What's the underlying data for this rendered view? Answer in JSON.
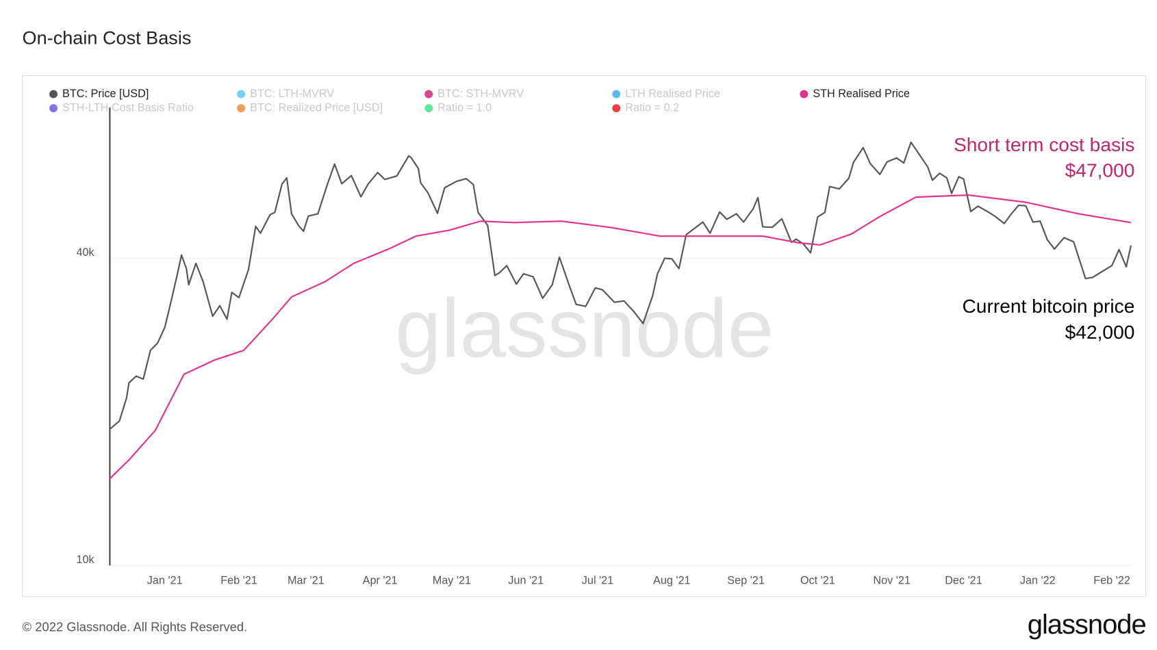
{
  "chart_data": {
    "type": "line",
    "title": "On-chain Cost Basis",
    "log_scale": true,
    "grid": true,
    "ylim": [
      10000,
      79000
    ],
    "yticks": [
      {
        "value": 10000,
        "label": "10k"
      },
      {
        "value": 40000,
        "label": "40k"
      }
    ],
    "xlim": [
      "2020-12-09",
      "2022-02-09"
    ],
    "xticks": [
      {
        "value": "2021-01-01",
        "label": "Jan '21"
      },
      {
        "value": "2021-02-01",
        "label": "Feb '21"
      },
      {
        "value": "2021-03-01",
        "label": "Mar '21"
      },
      {
        "value": "2021-04-01",
        "label": "Apr '21"
      },
      {
        "value": "2021-05-01",
        "label": "May '21"
      },
      {
        "value": "2021-06-01",
        "label": "Jun '21"
      },
      {
        "value": "2021-07-01",
        "label": "Jul '21"
      },
      {
        "value": "2021-08-01",
        "label": "Aug '21"
      },
      {
        "value": "2021-09-01",
        "label": "Sep '21"
      },
      {
        "value": "2021-10-01",
        "label": "Oct '21"
      },
      {
        "value": "2021-11-01",
        "label": "Nov '21"
      },
      {
        "value": "2021-12-01",
        "label": "Dec '21"
      },
      {
        "value": "2022-01-01",
        "label": "Jan '22"
      },
      {
        "value": "2022-02-01",
        "label": "Feb '22"
      }
    ],
    "series": [
      {
        "name": "BTC: Price [USD]",
        "color": "#555555",
        "visible": true,
        "x": [
          "2020-12-09",
          "2020-12-13",
          "2020-12-16",
          "2020-12-17",
          "2020-12-20",
          "2020-12-23",
          "2020-12-26",
          "2020-12-29",
          "2021-01-01",
          "2021-01-03",
          "2021-01-06",
          "2021-01-08",
          "2021-01-10",
          "2021-01-11",
          "2021-01-14",
          "2021-01-17",
          "2021-01-21",
          "2021-01-24",
          "2021-01-27",
          "2021-01-29",
          "2021-02-01",
          "2021-02-05",
          "2021-02-08",
          "2021-02-10",
          "2021-02-14",
          "2021-02-16",
          "2021-02-19",
          "2021-02-21",
          "2021-02-23",
          "2021-02-26",
          "2021-02-28",
          "2021-03-02",
          "2021-03-06",
          "2021-03-10",
          "2021-03-13",
          "2021-03-16",
          "2021-03-20",
          "2021-03-24",
          "2021-03-27",
          "2021-03-31",
          "2021-04-03",
          "2021-04-08",
          "2021-04-13",
          "2021-04-14",
          "2021-04-17",
          "2021-04-18",
          "2021-04-21",
          "2021-04-25",
          "2021-04-28",
          "2021-05-03",
          "2021-05-07",
          "2021-05-10",
          "2021-05-12",
          "2021-05-16",
          "2021-05-19",
          "2021-05-21",
          "2021-05-24",
          "2021-05-28",
          "2021-05-31",
          "2021-06-04",
          "2021-06-08",
          "2021-06-12",
          "2021-06-15",
          "2021-06-19",
          "2021-06-22",
          "2021-06-26",
          "2021-06-30",
          "2021-07-03",
          "2021-07-08",
          "2021-07-12",
          "2021-07-16",
          "2021-07-20",
          "2021-07-24",
          "2021-07-26",
          "2021-07-29",
          "2021-08-01",
          "2021-08-04",
          "2021-08-07",
          "2021-08-10",
          "2021-08-14",
          "2021-08-17",
          "2021-08-21",
          "2021-08-24",
          "2021-08-28",
          "2021-08-31",
          "2021-09-04",
          "2021-09-06",
          "2021-09-08",
          "2021-09-12",
          "2021-09-16",
          "2021-09-20",
          "2021-09-22",
          "2021-09-25",
          "2021-09-28",
          "2021-10-01",
          "2021-10-04",
          "2021-10-06",
          "2021-10-10",
          "2021-10-14",
          "2021-10-16",
          "2021-10-20",
          "2021-10-23",
          "2021-10-27",
          "2021-10-30",
          "2021-11-03",
          "2021-11-06",
          "2021-11-09",
          "2021-11-12",
          "2021-11-16",
          "2021-11-18",
          "2021-11-21",
          "2021-11-24",
          "2021-11-26",
          "2021-11-29",
          "2021-12-01",
          "2021-12-04",
          "2021-12-07",
          "2021-12-11",
          "2021-12-14",
          "2021-12-18",
          "2021-12-21",
          "2021-12-24",
          "2021-12-27",
          "2021-12-30",
          "2022-01-02",
          "2022-01-05",
          "2022-01-08",
          "2022-01-12",
          "2022-01-16",
          "2022-01-21",
          "2022-01-24",
          "2022-01-28",
          "2022-02-01",
          "2022-02-04",
          "2022-02-07",
          "2022-02-09"
        ],
        "values": [
          18500,
          19200,
          21300,
          22800,
          23500,
          23200,
          26400,
          27300,
          29300,
          32000,
          36800,
          40600,
          38200,
          35500,
          39100,
          36000,
          30800,
          32300,
          30400,
          34300,
          33500,
          38000,
          46200,
          44800,
          48700,
          49200,
          55900,
          57500,
          48900,
          46300,
          45200,
          48400,
          48900,
          55900,
          61200,
          56000,
          58100,
          52800,
          55900,
          58900,
          57100,
          58000,
          63500,
          63000,
          60000,
          56200,
          53800,
          49000,
          55000,
          56600,
          57300,
          55800,
          49200,
          46400,
          37000,
          37500,
          38700,
          35600,
          37300,
          36800,
          33400,
          35500,
          40200,
          35500,
          32500,
          32200,
          35000,
          34700,
          32800,
          33000,
          31500,
          29800,
          33800,
          37300,
          40000,
          39900,
          38200,
          44500,
          45600,
          47100,
          44800,
          49300,
          47700,
          48900,
          47100,
          50000,
          52600,
          46100,
          46000,
          47800,
          43000,
          43600,
          42700,
          41000,
          48200,
          49200,
          55300,
          54700,
          57400,
          61700,
          65900,
          61300,
          58400,
          61800,
          62900,
          61500,
          67500,
          64400,
          60400,
          56900,
          58700,
          57500,
          53600,
          57800,
          57200,
          49400,
          50600,
          49400,
          48400,
          46800,
          48900,
          50800,
          50700,
          47100,
          47300,
          43500,
          41700,
          43900,
          43100,
          36500,
          36700,
          37700,
          38700,
          41600,
          38500,
          42400
        ]
      },
      {
        "name": "BTC: LTH-MVRV",
        "color": "#5bc8f0",
        "visible": false
      },
      {
        "name": "BTC: STH-MVRV",
        "color": "#d0247a",
        "visible": false
      },
      {
        "name": "LTH Realised Price",
        "color": "#3bb4ea",
        "visible": false
      },
      {
        "name": "STH Realised Price",
        "color": "#e5308f",
        "visible": true,
        "x": [
          "2020-12-09",
          "2020-12-17",
          "2020-12-28",
          "2021-01-09",
          "2021-01-22",
          "2021-02-03",
          "2021-02-15",
          "2021-02-23",
          "2021-03-09",
          "2021-03-21",
          "2021-04-05",
          "2021-04-16",
          "2021-04-30",
          "2021-05-13",
          "2021-05-27",
          "2021-06-16",
          "2021-07-06",
          "2021-07-27",
          "2021-08-14",
          "2021-09-08",
          "2021-09-23",
          "2021-10-02",
          "2021-10-15",
          "2021-10-27",
          "2021-11-11",
          "2021-12-03",
          "2021-12-27",
          "2022-01-18",
          "2022-02-09"
        ],
        "values": [
          14800,
          16100,
          18400,
          23700,
          25300,
          26400,
          30400,
          33600,
          36000,
          39100,
          41800,
          44200,
          45400,
          47300,
          47000,
          47300,
          46000,
          44200,
          44200,
          44200,
          42900,
          42500,
          44600,
          48300,
          52700,
          53200,
          51500,
          48900,
          47000
        ]
      },
      {
        "name": "STH-LTH Cost Basis Ratio",
        "color": "#6a5cf0",
        "visible": false
      },
      {
        "name": "BTC: Realized Price [USD]",
        "color": "#f5883a",
        "visible": false
      },
      {
        "name": "Ratio = 1.0",
        "color": "#3ee88a",
        "visible": false
      },
      {
        "name": "Ratio = 0.2",
        "color": "#ee1b1b",
        "visible": false
      }
    ],
    "annotations": [
      {
        "lines": [
          "Short term cost basis",
          "$47,000"
        ],
        "color": "#c0246e"
      },
      {
        "lines": [
          "Current bitcoin price",
          "$42,000"
        ],
        "color": "#000000"
      }
    ],
    "watermark": "glassnode"
  },
  "footer": {
    "copyright": "© 2022 Glassnode. All Rights Reserved.",
    "logo": "glassnode"
  }
}
